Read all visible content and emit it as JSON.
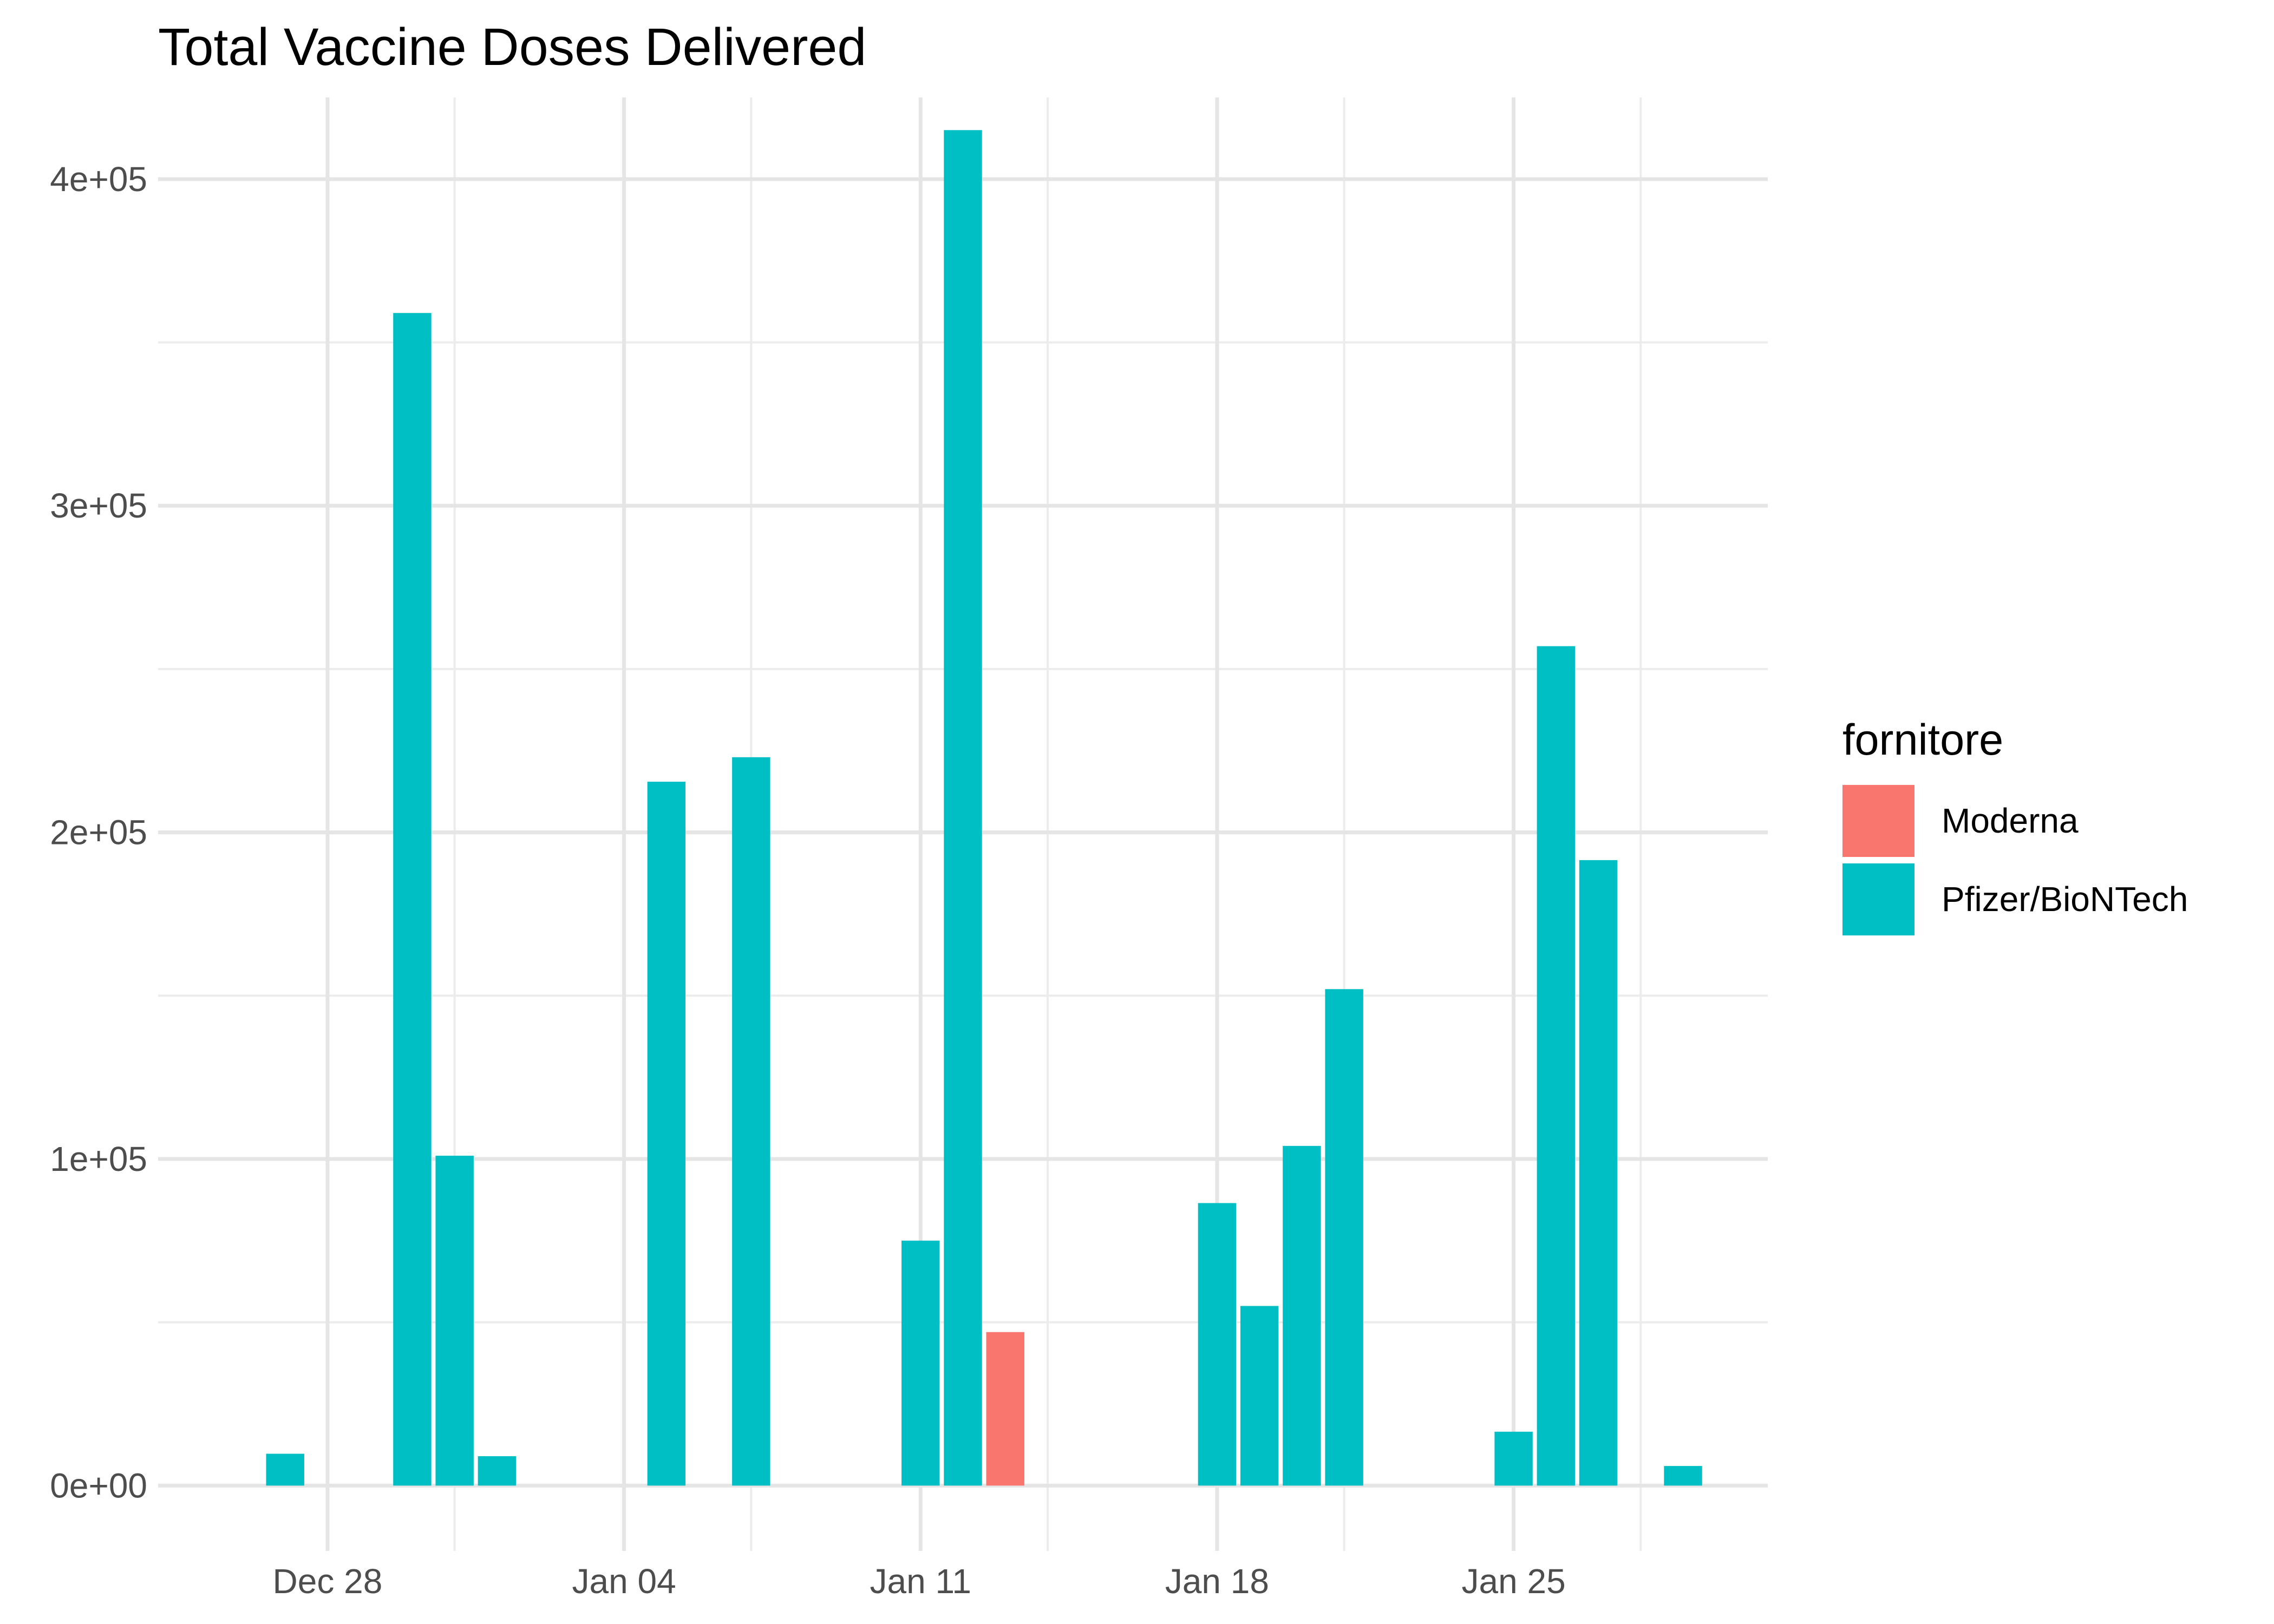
{
  "chart_data": {
    "type": "bar",
    "title": "Total Vaccine Doses Delivered",
    "xlabel": "",
    "ylabel": "",
    "x_axis": {
      "type": "date",
      "range": [
        "2020-12-24",
        "2021-01-31"
      ],
      "ticks": [
        {
          "date": "2020-12-28",
          "label": "Dec 28"
        },
        {
          "date": "2021-01-04",
          "label": "Jan 04"
        },
        {
          "date": "2021-01-11",
          "label": "Jan 11"
        },
        {
          "date": "2021-01-18",
          "label": "Jan 18"
        },
        {
          "date": "2021-01-25",
          "label": "Jan 25"
        }
      ],
      "minor_ticks": [
        "2020-12-31",
        "2021-01-07",
        "2021-01-14",
        "2021-01-21",
        "2021-01-28"
      ]
    },
    "y_axis": {
      "range": [
        -20000,
        425000
      ],
      "ticks": [
        {
          "value": 0,
          "label": "0e+00"
        },
        {
          "value": 100000,
          "label": "1e+05"
        },
        {
          "value": 200000,
          "label": "2e+05"
        },
        {
          "value": 300000,
          "label": "3e+05"
        },
        {
          "value": 400000,
          "label": "4e+05"
        }
      ],
      "minor_ticks": [
        50000,
        150000,
        250000,
        350000
      ]
    },
    "grid": true,
    "legend": {
      "title": "fornitore",
      "position": "right",
      "entries": [
        {
          "name": "Moderna",
          "color": "#F8766D"
        },
        {
          "name": "Pfizer/BioNTech",
          "color": "#00BFC4"
        }
      ]
    },
    "series": [
      {
        "name": "Moderna",
        "color": "#F8766D",
        "points": [
          {
            "date": "2021-01-13",
            "value": 47000
          }
        ]
      },
      {
        "name": "Pfizer/BioNTech",
        "color": "#00BFC4",
        "points": [
          {
            "date": "2020-12-27",
            "value": 9750
          },
          {
            "date": "2020-12-30",
            "value": 359000
          },
          {
            "date": "2020-12-31",
            "value": 101000
          },
          {
            "date": "2021-01-01",
            "value": 9000
          },
          {
            "date": "2021-01-05",
            "value": 215500
          },
          {
            "date": "2021-01-07",
            "value": 223000
          },
          {
            "date": "2021-01-11",
            "value": 75000
          },
          {
            "date": "2021-01-12",
            "value": 415000
          },
          {
            "date": "2021-01-18",
            "value": 86500
          },
          {
            "date": "2021-01-19",
            "value": 55000
          },
          {
            "date": "2021-01-20",
            "value": 104000
          },
          {
            "date": "2021-01-21",
            "value": 152000
          },
          {
            "date": "2021-01-25",
            "value": 16500
          },
          {
            "date": "2021-01-26",
            "value": 257000
          },
          {
            "date": "2021-01-27",
            "value": 191500
          },
          {
            "date": "2021-01-29",
            "value": 6000
          }
        ]
      }
    ]
  }
}
